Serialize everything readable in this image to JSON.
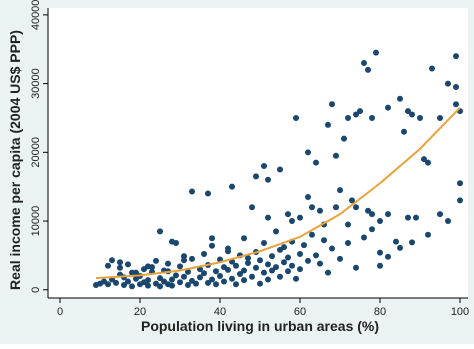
{
  "chart_data": {
    "type": "scatter",
    "x_label": "Population living in urban areas (%)",
    "y_label": "Real income per capita (2004 US$ PPP)",
    "xlim": [
      -3,
      102
    ],
    "ylim": [
      -1200,
      41000
    ],
    "xticks": [
      0,
      20,
      40,
      60,
      80,
      100
    ],
    "yticks": [
      0,
      10000,
      20000,
      30000,
      40000
    ],
    "color": "#1a476f",
    "series": [
      {
        "x": [
          9,
          10,
          11,
          12,
          13,
          13,
          14,
          15,
          15,
          16,
          16,
          17,
          17,
          18,
          18,
          19,
          20,
          20,
          21,
          21,
          22,
          22,
          23,
          23,
          24,
          24,
          25,
          25,
          26,
          26,
          27,
          27,
          28,
          28,
          29,
          29,
          30,
          30,
          31,
          31,
          32,
          32,
          33,
          33,
          34,
          35,
          35,
          36,
          36,
          37,
          37,
          38,
          38,
          39,
          39,
          40,
          40,
          41,
          41,
          42,
          42,
          43,
          43,
          44,
          44,
          45,
          45,
          46,
          46,
          47,
          47,
          48,
          49,
          49,
          50,
          50,
          51,
          51,
          52,
          52,
          53,
          53,
          54,
          55,
          55,
          56,
          56,
          57,
          57,
          58,
          58,
          59,
          60,
          60,
          61,
          62,
          63,
          64,
          65,
          66,
          67,
          68,
          70,
          72,
          74,
          76,
          78,
          80,
          82,
          85,
          88,
          12,
          15,
          19,
          22,
          27,
          31,
          25,
          28,
          38,
          42,
          46,
          48,
          52,
          54,
          57,
          58,
          60,
          62,
          63,
          65,
          66,
          69,
          70,
          72,
          73,
          74,
          77,
          78,
          80,
          80,
          82,
          84,
          87,
          89,
          92,
          95,
          97,
          100,
          100,
          33,
          37,
          43,
          49,
          51,
          52,
          55,
          59,
          62,
          64,
          67,
          68,
          69,
          71,
          72,
          74,
          75,
          76,
          77,
          78,
          79,
          82,
          85,
          86,
          87,
          88,
          90,
          91,
          92,
          93,
          95,
          97,
          99,
          99,
          99,
          100
        ],
        "values": [
          700,
          900,
          1200,
          800,
          4300,
          1500,
          1000,
          4000,
          2200,
          700,
          1800,
          1200,
          3700,
          500,
          2500,
          1600,
          800,
          2000,
          1100,
          3000,
          600,
          1400,
          2600,
          3300,
          900,
          4200,
          500,
          1700,
          1200,
          2800,
          800,
          3800,
          1500,
          600,
          2100,
          6800,
          1100,
          3400,
          4900,
          1900,
          700,
          2600,
          1300,
          4500,
          900,
          3000,
          1800,
          2400,
          5200,
          1000,
          3600,
          1500,
          6400,
          2700,
          800,
          4400,
          2000,
          1200,
          3300,
          2900,
          5600,
          1600,
          4100,
          800,
          3500,
          2300,
          5000,
          1400,
          2800,
          4600,
          3900,
          1900,
          3200,
          5500,
          900,
          4300,
          2500,
          6800,
          3700,
          1500,
          4900,
          2800,
          3300,
          5800,
          1900,
          4000,
          6200,
          2700,
          4700,
          3500,
          7000,
          1600,
          5200,
          3000,
          6500,
          4200,
          8000,
          5000,
          3800,
          7200,
          2500,
          6000,
          4500,
          6800,
          3200,
          7600,
          8800,
          5400,
          4800,
          6100,
          6900,
          3500,
          3200,
          2500,
          3400,
          2700,
          4300,
          8500,
          7000,
          7500,
          6000,
          7500,
          12000,
          10500,
          8500,
          11000,
          10000,
          10500,
          13500,
          12000,
          11500,
          9500,
          12000,
          14500,
          9500,
          13000,
          12000,
          11500,
          11000,
          10000,
          3500,
          11000,
          7000,
          10500,
          10500,
          8000,
          11000,
          10000,
          15500,
          13000,
          14300,
          14000,
          15000,
          16500,
          18000,
          16000,
          17500,
          25000,
          20000,
          18500,
          24000,
          27000,
          19500,
          22000,
          25000,
          25500,
          26000,
          33000,
          32000,
          25000,
          34500,
          26500,
          27800,
          23000,
          26000,
          25500,
          25000,
          19000,
          18500,
          32200,
          25000,
          30000,
          34000,
          29500,
          27000,
          26000
        ]
      }
    ],
    "fit": {
      "color": "#e8a33d",
      "x": [
        9,
        20,
        30,
        40,
        50,
        60,
        70,
        80,
        90,
        100
      ],
      "values": [
        1700,
        2100,
        2800,
        4000,
        5600,
        7700,
        11000,
        15500,
        20500,
        26500
      ]
    }
  }
}
